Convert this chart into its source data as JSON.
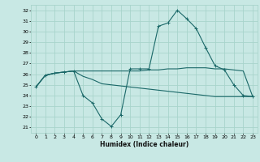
{
  "xlabel": "Humidex (Indice chaleur)",
  "xlim": [
    -0.5,
    23.5
  ],
  "ylim": [
    20.5,
    32.5
  ],
  "yticks": [
    21,
    22,
    23,
    24,
    25,
    26,
    27,
    28,
    29,
    30,
    31,
    32
  ],
  "xticks": [
    0,
    1,
    2,
    3,
    4,
    5,
    6,
    7,
    8,
    9,
    10,
    11,
    12,
    13,
    14,
    15,
    16,
    17,
    18,
    19,
    20,
    21,
    22,
    23
  ],
  "bg_color": "#c8e8e4",
  "grid_color": "#a8d4cc",
  "line_color": "#1a6868",
  "curve_x": [
    0,
    1,
    2,
    3,
    4,
    5,
    6,
    7,
    8,
    9,
    10,
    11,
    12,
    13,
    14,
    15,
    16,
    17,
    18,
    19,
    20,
    21,
    22,
    23
  ],
  "curve_y": [
    24.8,
    25.9,
    26.1,
    26.2,
    26.3,
    24.0,
    23.3,
    21.8,
    21.1,
    22.2,
    26.5,
    26.5,
    26.5,
    30.5,
    30.8,
    32.0,
    31.2,
    30.3,
    28.5,
    26.8,
    26.4,
    25.0,
    24.0,
    23.9
  ],
  "flat_x": [
    0,
    1,
    2,
    3,
    4,
    10,
    11,
    12,
    13,
    14,
    15,
    16,
    17,
    18,
    19,
    20,
    21,
    22,
    23
  ],
  "flat_y": [
    24.8,
    25.9,
    26.1,
    26.2,
    26.3,
    26.3,
    26.3,
    26.4,
    26.4,
    26.5,
    26.5,
    26.6,
    26.6,
    26.6,
    26.5,
    26.5,
    26.4,
    26.3,
    23.9
  ],
  "dec_x": [
    0,
    1,
    2,
    3,
    4,
    5,
    6,
    7,
    8,
    9,
    10,
    11,
    12,
    13,
    14,
    15,
    16,
    17,
    18,
    19,
    20,
    21,
    22,
    23
  ],
  "dec_y": [
    24.8,
    25.9,
    26.1,
    26.2,
    26.3,
    25.8,
    25.5,
    25.1,
    25.0,
    24.9,
    24.8,
    24.7,
    24.6,
    24.5,
    24.4,
    24.3,
    24.2,
    24.1,
    24.0,
    23.9,
    23.9,
    23.9,
    23.9,
    23.9
  ]
}
